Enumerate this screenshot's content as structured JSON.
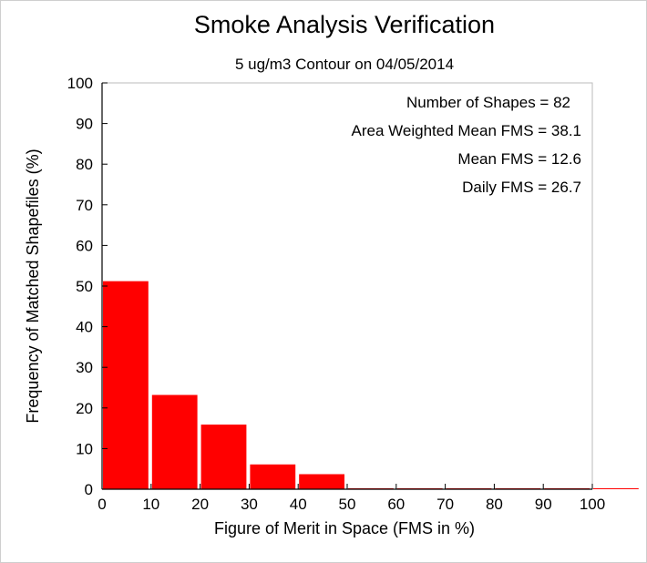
{
  "chart_data": {
    "type": "bar",
    "title": "Smoke Analysis Verification",
    "subtitle": "5 ug/m3 Contour on 04/05/2014",
    "xlabel": "Figure of Merit in Space (FMS in %)",
    "ylabel": "Frequency of Matched Shapefiles (%)",
    "xlim": [
      0,
      100
    ],
    "ylim": [
      0,
      100
    ],
    "x_ticks": [
      "0",
      "10",
      "20",
      "30",
      "40",
      "50",
      "60",
      "70",
      "80",
      "90",
      "100"
    ],
    "y_ticks": [
      "0",
      "10",
      "20",
      "30",
      "40",
      "50",
      "60",
      "70",
      "80",
      "90",
      "100"
    ],
    "bins": [
      {
        "from": 0,
        "to": 10,
        "value": 51.2
      },
      {
        "from": 10,
        "to": 20,
        "value": 23.2
      },
      {
        "from": 20,
        "to": 30,
        "value": 15.9
      },
      {
        "from": 30,
        "to": 40,
        "value": 6.1
      },
      {
        "from": 40,
        "to": 50,
        "value": 3.7
      },
      {
        "from": 50,
        "to": 60,
        "value": 0
      },
      {
        "from": 60,
        "to": 70,
        "value": 0
      },
      {
        "from": 70,
        "to": 80,
        "value": 0
      },
      {
        "from": 80,
        "to": 90,
        "value": 0
      },
      {
        "from": 90,
        "to": 100,
        "value": 0
      },
      {
        "from": 100,
        "to": 110,
        "value": 0
      }
    ],
    "bar_color": "#ff0000",
    "grid": false,
    "annotations": [
      "Number of Shapes = 82",
      "Area Weighted Mean FMS = 38.1",
      "Mean FMS = 12.6",
      "Daily FMS = 26.7"
    ]
  }
}
